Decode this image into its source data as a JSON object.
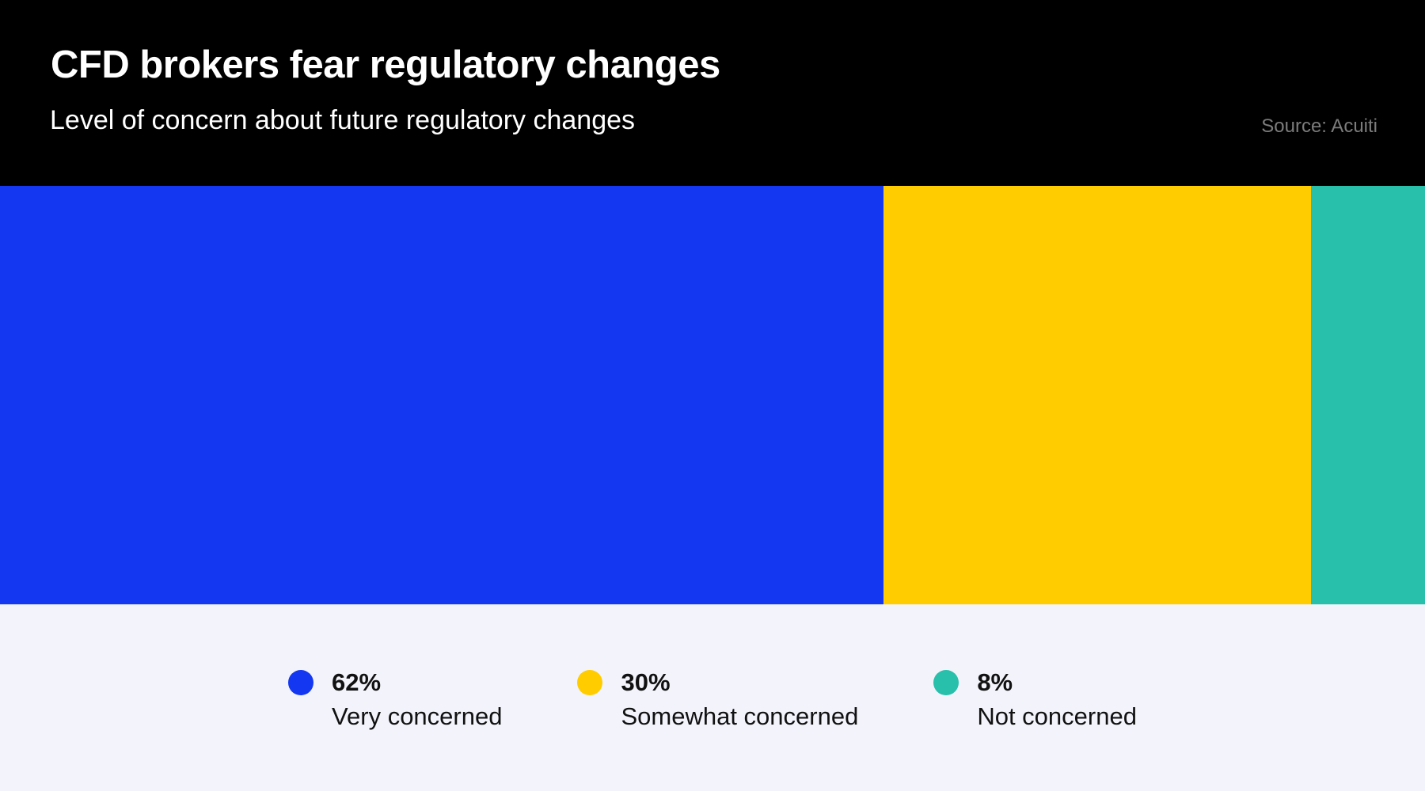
{
  "header": {
    "title": "CFD brokers fear regulatory changes",
    "subtitle": "Level of concern about future regulatory changes",
    "source": "Source: Acuiti"
  },
  "chart_data": {
    "type": "bar",
    "variant": "horizontal-stacked-100-percent",
    "title": "CFD brokers fear regulatory changes",
    "subtitle": "Level of concern about future regulatory changes",
    "source": "Source: Acuiti",
    "categories": [
      "Very concerned",
      "Somewhat concerned",
      "Not concerned"
    ],
    "values": [
      62,
      30,
      8
    ],
    "unit": "%",
    "colors": [
      "#1437F2",
      "#FFCC00",
      "#28BFAB"
    ],
    "xlim": [
      0,
      100
    ],
    "axes_visible": false,
    "grid": false,
    "legend_position": "bottom"
  },
  "legend": {
    "items": [
      {
        "value": "62%",
        "label": "Very concerned",
        "color": "#1437F2"
      },
      {
        "value": "30%",
        "label": "Somewhat concerned",
        "color": "#FFCC00"
      },
      {
        "value": "8%",
        "label": "Not concerned",
        "color": "#28BFAB"
      }
    ]
  },
  "colors": {
    "header_bg": "#000000",
    "title_text": "#FFFFFF",
    "subtitle_text": "#FFFFFF",
    "source_text": "#7C7C7C",
    "footer_bg": "#F2F3FB",
    "legend_text": "#111111"
  }
}
